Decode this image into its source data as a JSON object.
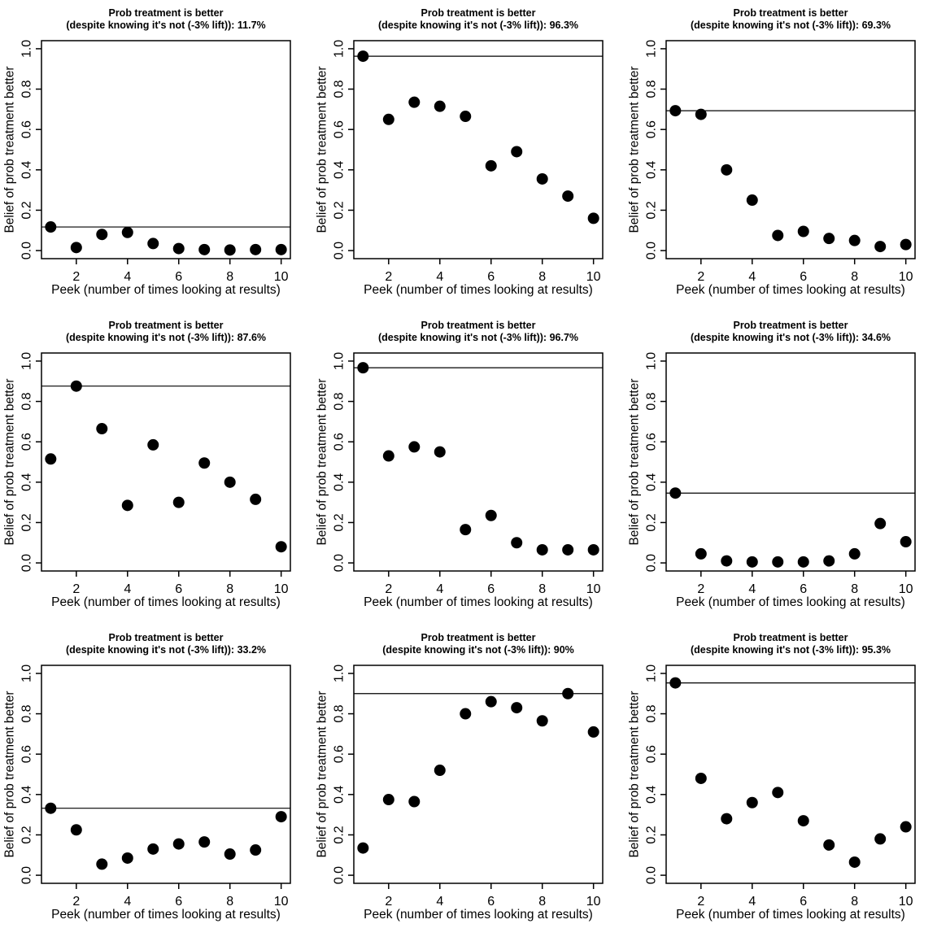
{
  "page": {
    "background": "#ffffff",
    "foreground": "#000000"
  },
  "shared": {
    "x_label": "Peek (number of times looking at results)",
    "y_label": "Belief of prob treatment better",
    "x_ticks": [
      2,
      4,
      6,
      8,
      10
    ],
    "y_tick_labels": [
      "0.0",
      "0.2",
      "0.4",
      "0.6",
      "0.8",
      "1.0"
    ],
    "y_tick_values": [
      0.0,
      0.2,
      0.4,
      0.6,
      0.8,
      1.0
    ],
    "xlim": [
      1,
      10
    ],
    "ylim": [
      0,
      1
    ],
    "point_color": "#000000",
    "line_color": "#000000",
    "grid": "off",
    "legend": "none"
  },
  "chart_data": [
    {
      "type": "scatter",
      "title": "Prob treatment is better",
      "subtitle": "(despite knowing it's not (-3% lift)): 11.7%",
      "peak_belief_pct": "11.7%",
      "x": [
        1,
        2,
        3,
        4,
        5,
        6,
        7,
        8,
        9,
        10
      ],
      "y": [
        0.117,
        0.015,
        0.08,
        0.09,
        0.035,
        0.01,
        0.005,
        0.003,
        0.005,
        0.005
      ],
      "hline": 0.117,
      "xlabel": "Peek (number of times looking at results)",
      "ylabel": "Belief of prob treatment better",
      "xlim": [
        1,
        10
      ],
      "ylim": [
        0,
        1
      ]
    },
    {
      "type": "scatter",
      "title": "Prob treatment is better",
      "subtitle": "(despite knowing it's not (-3% lift)): 96.3%",
      "peak_belief_pct": "96.3%",
      "x": [
        1,
        2,
        3,
        4,
        5,
        6,
        7,
        8,
        9,
        10
      ],
      "y": [
        0.963,
        0.65,
        0.735,
        0.715,
        0.665,
        0.42,
        0.49,
        0.355,
        0.27,
        0.16
      ],
      "hline": 0.963,
      "xlabel": "Peek (number of times looking at results)",
      "ylabel": "Belief of prob treatment better",
      "xlim": [
        1,
        10
      ],
      "ylim": [
        0,
        1
      ]
    },
    {
      "type": "scatter",
      "title": "Prob treatment is better",
      "subtitle": "(despite knowing it's not (-3% lift)): 69.3%",
      "peak_belief_pct": "69.3%",
      "x": [
        1,
        2,
        3,
        4,
        5,
        6,
        7,
        8,
        9,
        10
      ],
      "y": [
        0.693,
        0.675,
        0.4,
        0.25,
        0.075,
        0.095,
        0.06,
        0.05,
        0.02,
        0.03
      ],
      "hline": 0.693,
      "xlabel": "Peek (number of times looking at results)",
      "ylabel": "Belief of prob treatment better",
      "xlim": [
        1,
        10
      ],
      "ylim": [
        0,
        1
      ]
    },
    {
      "type": "scatter",
      "title": "Prob treatment is better",
      "subtitle": "(despite knowing it's not (-3% lift)): 87.6%",
      "peak_belief_pct": "87.6%",
      "x": [
        1,
        2,
        3,
        4,
        5,
        6,
        7,
        8,
        9,
        10
      ],
      "y": [
        0.515,
        0.876,
        0.665,
        0.285,
        0.585,
        0.3,
        0.495,
        0.4,
        0.315,
        0.08
      ],
      "hline": 0.876,
      "xlabel": "Peek (number of times looking at results)",
      "ylabel": "Belief of prob treatment better",
      "xlim": [
        1,
        10
      ],
      "ylim": [
        0,
        1
      ]
    },
    {
      "type": "scatter",
      "title": "Prob treatment is better",
      "subtitle": "(despite knowing it's not (-3% lift)): 96.7%",
      "peak_belief_pct": "96.7%",
      "x": [
        1,
        2,
        3,
        4,
        5,
        6,
        7,
        8,
        9,
        10
      ],
      "y": [
        0.967,
        0.53,
        0.575,
        0.55,
        0.165,
        0.235,
        0.1,
        0.065,
        0.065,
        0.065
      ],
      "hline": 0.967,
      "xlabel": "Peek (number of times looking at results)",
      "ylabel": "Belief of prob treatment better",
      "xlim": [
        1,
        10
      ],
      "ylim": [
        0,
        1
      ]
    },
    {
      "type": "scatter",
      "title": "Prob treatment is better",
      "subtitle": "(despite knowing it's not (-3% lift)): 34.6%",
      "peak_belief_pct": "34.6%",
      "x": [
        1,
        2,
        3,
        4,
        5,
        6,
        7,
        8,
        9,
        10
      ],
      "y": [
        0.346,
        0.045,
        0.01,
        0.005,
        0.005,
        0.005,
        0.01,
        0.045,
        0.195,
        0.105
      ],
      "hline": 0.346,
      "xlabel": "Peek (number of times looking at results)",
      "ylabel": "Belief of prob treatment better",
      "xlim": [
        1,
        10
      ],
      "ylim": [
        0,
        1
      ]
    },
    {
      "type": "scatter",
      "title": "Prob treatment is better",
      "subtitle": "(despite knowing it's not (-3% lift)): 33.2%",
      "peak_belief_pct": "33.2%",
      "x": [
        1,
        2,
        3,
        4,
        5,
        6,
        7,
        8,
        9,
        10
      ],
      "y": [
        0.332,
        0.225,
        0.055,
        0.085,
        0.13,
        0.155,
        0.165,
        0.105,
        0.125,
        0.29
      ],
      "hline": 0.332,
      "xlabel": "Peek (number of times looking at results)",
      "ylabel": "Belief of prob treatment better",
      "xlim": [
        1,
        10
      ],
      "ylim": [
        0,
        1
      ]
    },
    {
      "type": "scatter",
      "title": "Prob treatment is better",
      "subtitle": "(despite knowing it's not (-3% lift)): 90%",
      "peak_belief_pct": "90%",
      "x": [
        1,
        2,
        3,
        4,
        5,
        6,
        7,
        8,
        9,
        10
      ],
      "y": [
        0.135,
        0.375,
        0.365,
        0.52,
        0.8,
        0.86,
        0.83,
        0.765,
        0.9,
        0.71
      ],
      "hline": 0.9,
      "xlabel": "Peek (number of times looking at results)",
      "ylabel": "Belief of prob treatment better",
      "xlim": [
        1,
        10
      ],
      "ylim": [
        0,
        1
      ]
    },
    {
      "type": "scatter",
      "title": "Prob treatment is better",
      "subtitle": "(despite knowing it's not (-3% lift)): 95.3%",
      "peak_belief_pct": "95.3%",
      "x": [
        1,
        2,
        3,
        4,
        5,
        6,
        7,
        8,
        9,
        10
      ],
      "y": [
        0.953,
        0.48,
        0.28,
        0.36,
        0.41,
        0.27,
        0.15,
        0.065,
        0.18,
        0.24
      ],
      "hline": 0.953,
      "xlabel": "Peek (number of times looking at results)",
      "ylabel": "Belief of prob treatment better",
      "xlim": [
        1,
        10
      ],
      "ylim": [
        0,
        1
      ]
    }
  ]
}
